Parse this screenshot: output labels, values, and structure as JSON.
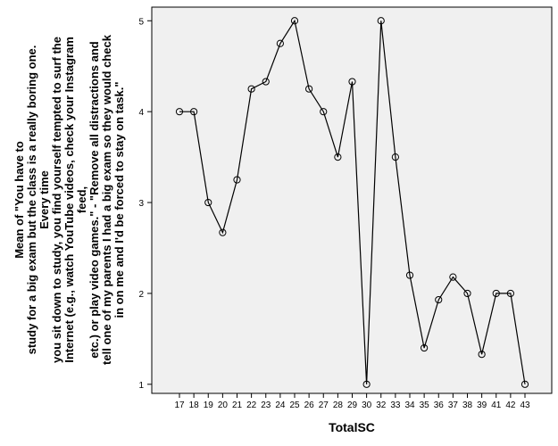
{
  "chart_data": {
    "type": "line",
    "title": "",
    "xlabel": "TotalSC",
    "ylabel_lines": [
      "Mean of \"You have to",
      "study for a big exam but the class is a really boring one.",
      "Every time",
      "you sit down to study, you find yourself tempted to surf the",
      "Internet (e.g., watch YouTube videos, check your Instagram",
      "feed,",
      "etc.) or play video games.\" - \"Remove all distractions and",
      "tell one of my parents I had a big exam so they would check",
      "in on me and I'd be forced to stay on task.\""
    ],
    "x": [
      "17",
      "18",
      "19",
      "20",
      "21",
      "22",
      "23",
      "24",
      "25",
      "26",
      "27",
      "28",
      "29",
      "30",
      "32",
      "33",
      "34",
      "35",
      "36",
      "37",
      "38",
      "39",
      "41",
      "42",
      "43"
    ],
    "values": [
      4.0,
      4.0,
      3.0,
      2.67,
      3.25,
      4.25,
      4.33,
      4.75,
      5.0,
      4.25,
      4.0,
      3.5,
      4.33,
      1.0,
      5.0,
      3.5,
      2.2,
      1.4,
      1.93,
      2.18,
      2.0,
      1.33,
      2.0,
      2.0,
      1.0
    ],
    "yticks": [
      "1",
      "2",
      "3",
      "4",
      "5"
    ],
    "ylim": [
      0.9,
      5.15
    ],
    "grid": false,
    "marker": "circle-open",
    "line_color": "#000000",
    "plot_background": "#f0f0f0"
  }
}
